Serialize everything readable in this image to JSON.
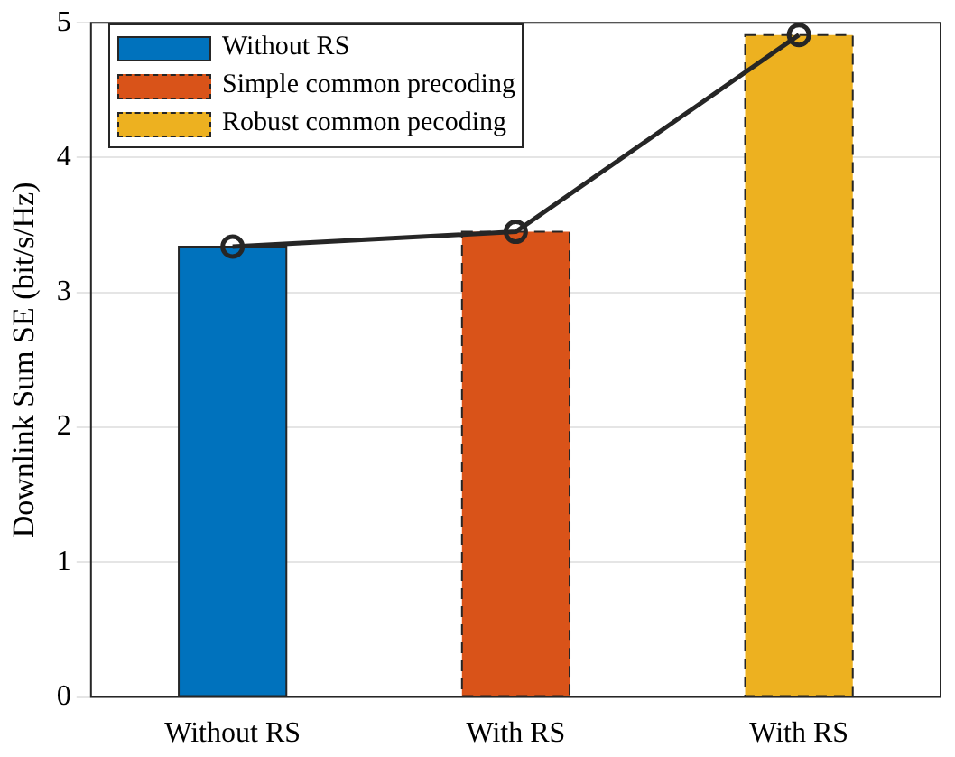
{
  "chart_data": {
    "type": "bar",
    "ylabel": "Downlink Sum SE (bit/s/Hz)",
    "categories": [
      "Without RS",
      "With RS",
      "With RS"
    ],
    "series": [
      {
        "name": "Without RS",
        "color": "#0072bd",
        "values": [
          3.34,
          null,
          null
        ],
        "line_style": "solid"
      },
      {
        "name": "Simple common precoding",
        "color": "#d95319",
        "values": [
          null,
          3.45,
          null
        ],
        "line_style": "dashed"
      },
      {
        "name": "Robust common pecoding",
        "color": "#edb120",
        "values": [
          null,
          null,
          4.91
        ],
        "line_style": "dashed"
      },
      {
        "type": "line",
        "color": "#262626",
        "values": [
          3.34,
          3.45,
          4.91
        ],
        "marker": "circle",
        "line_style": "solid"
      }
    ],
    "ylim": [
      0,
      5
    ],
    "yticks": [
      0,
      1,
      2,
      3,
      4,
      5
    ],
    "grid": "y",
    "legend": "top left"
  }
}
